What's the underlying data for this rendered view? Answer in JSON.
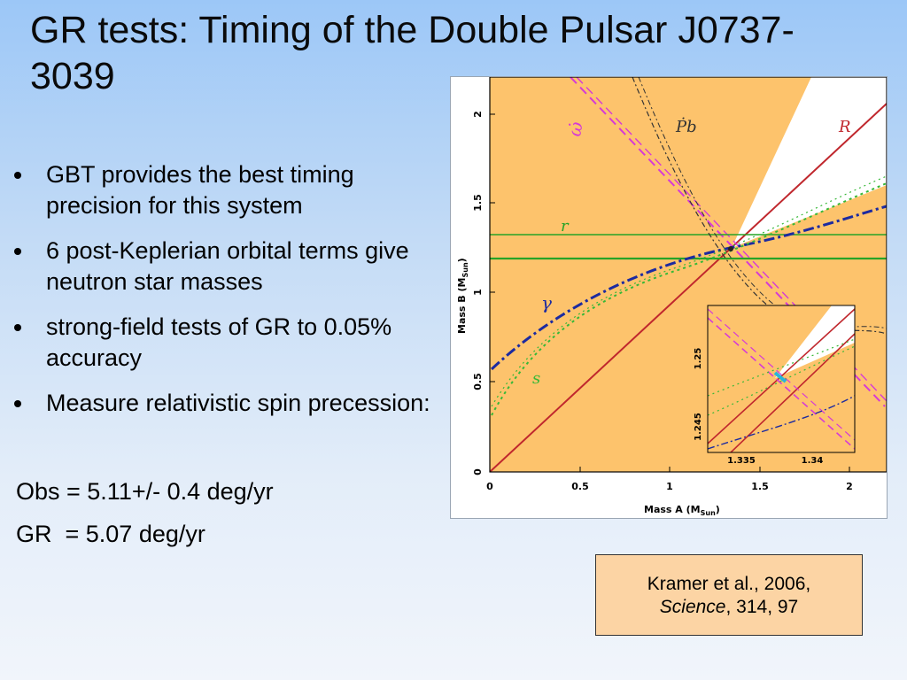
{
  "slide": {
    "title": "GR tests: Timing of the Double Pulsar J0737-3039",
    "bullets": [
      "GBT provides the best timing precision for this system",
      "6 post-Keplerian orbital terms give neutron star masses",
      "strong-field tests of GR to 0.05% accuracy",
      "Measure relativistic spin precession:"
    ],
    "obs_line": "Obs = 5.11+/- 0.4 deg/yr",
    "gr_line": "GR  = 5.07 deg/yr",
    "citation": {
      "line1": "Kramer et al., 2006,",
      "journal": "Science",
      "rest": ", 314, 97"
    }
  },
  "figure": {
    "x_label": "Mass A (M",
    "x_label_sub": "Sun",
    "x_label_close": ")",
    "y_label": "Mass B (M",
    "y_label_sub": "Sun",
    "y_label_close": ")",
    "x_ticks": [
      "0",
      "0.5",
      "1",
      "1.5",
      "2"
    ],
    "y_ticks": [
      "0",
      "0.5",
      "1",
      "1.5",
      "2"
    ],
    "curve_labels": {
      "omega_dot": "ω̇",
      "pb_dot": "Ṗb",
      "R": "R",
      "r": "r",
      "gamma": "γ",
      "s": "s"
    },
    "inset": {
      "x_ticks": [
        "1.335",
        "1.34"
      ],
      "y_ticks": [
        "1.245",
        "1.25"
      ]
    },
    "colors": {
      "allowed_region": "#fdc36c",
      "R_line": "#c0272d",
      "omega_line": "#d63ad6",
      "r_line": "#27a327",
      "s_line": "#37b837",
      "gamma_line": "#1c2aa0",
      "pb_line": "#333333"
    }
  }
}
